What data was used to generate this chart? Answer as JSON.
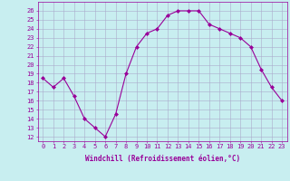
{
  "x": [
    0,
    1,
    2,
    3,
    4,
    5,
    6,
    7,
    8,
    9,
    10,
    11,
    12,
    13,
    14,
    15,
    16,
    17,
    18,
    19,
    20,
    21,
    22,
    23
  ],
  "y": [
    18.5,
    17.5,
    18.5,
    16.5,
    14.0,
    13.0,
    12.0,
    14.5,
    19.0,
    22.0,
    23.5,
    24.0,
    25.5,
    26.0,
    26.0,
    26.0,
    24.5,
    24.0,
    23.5,
    23.0,
    22.0,
    19.5,
    17.5,
    16.0
  ],
  "line_color": "#990099",
  "marker": "D",
  "marker_size": 2,
  "bg_color": "#c8eef0",
  "grid_color": "#aaaacc",
  "xlabel": "Windchill (Refroidissement éolien,°C)",
  "xlabel_color": "#990099",
  "ylabel_ticks": [
    12,
    13,
    14,
    15,
    16,
    17,
    18,
    19,
    20,
    21,
    22,
    23,
    24,
    25,
    26
  ],
  "xlim": [
    -0.5,
    23.5
  ],
  "ylim": [
    11.5,
    27.0
  ],
  "tick_color": "#990099",
  "axis_color": "#990099",
  "tick_fontsize": 5.0,
  "xlabel_fontsize": 5.5
}
